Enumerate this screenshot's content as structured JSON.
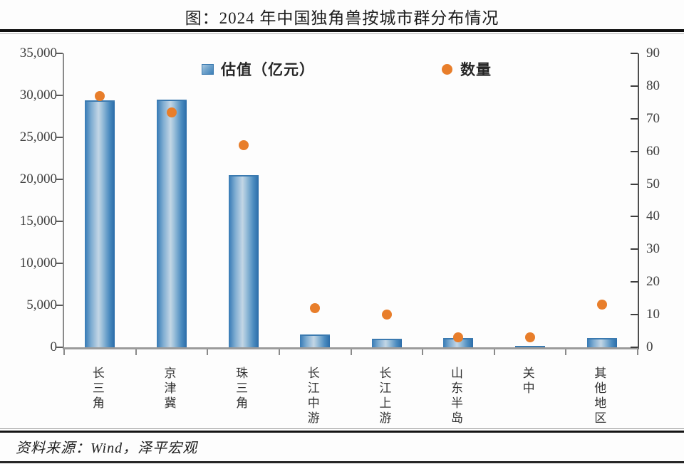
{
  "title": "图：2024 年中国独角兽按城市群分布情况",
  "source_note": "资料来源：Wind，泽平宏观",
  "legend": {
    "bar_label": "估值（亿元）",
    "dot_label": "数量"
  },
  "axes": {
    "left": {
      "ticks": [
        "0",
        "5,000",
        "10,000",
        "15,000",
        "20,000",
        "25,000",
        "30,000",
        "35,000"
      ],
      "max": 35000
    },
    "right": {
      "ticks": [
        "0",
        "10",
        "20",
        "30",
        "40",
        "50",
        "60",
        "70",
        "80",
        "90"
      ],
      "max": 90
    }
  },
  "chart_data": {
    "type": "bar",
    "title": "图：2024 年中国独角兽按城市群分布情况",
    "categories": [
      "长三角",
      "京津冀",
      "珠三角",
      "长江中游",
      "长江上游",
      "山东半岛",
      "关中",
      "其他地区"
    ],
    "series": [
      {
        "name": "估值（亿元）",
        "type": "bar",
        "axis": "left",
        "values": [
          29400,
          29500,
          20500,
          1500,
          1000,
          1100,
          100,
          1100
        ]
      },
      {
        "name": "数量",
        "type": "scatter",
        "axis": "right",
        "values": [
          77,
          72,
          62,
          12,
          10,
          3,
          3,
          13
        ]
      }
    ],
    "ylim_left": [
      0,
      35000
    ],
    "ylim_right": [
      0,
      90
    ],
    "legend_position": "top",
    "grid": false
  },
  "colors": {
    "bar_dark": "#2e74b2",
    "bar_light": "#c3d6e5",
    "dot_orange": "#e87e2b",
    "axis_gray": "#8a8a8a",
    "text_dark": "#1c1c1c"
  }
}
